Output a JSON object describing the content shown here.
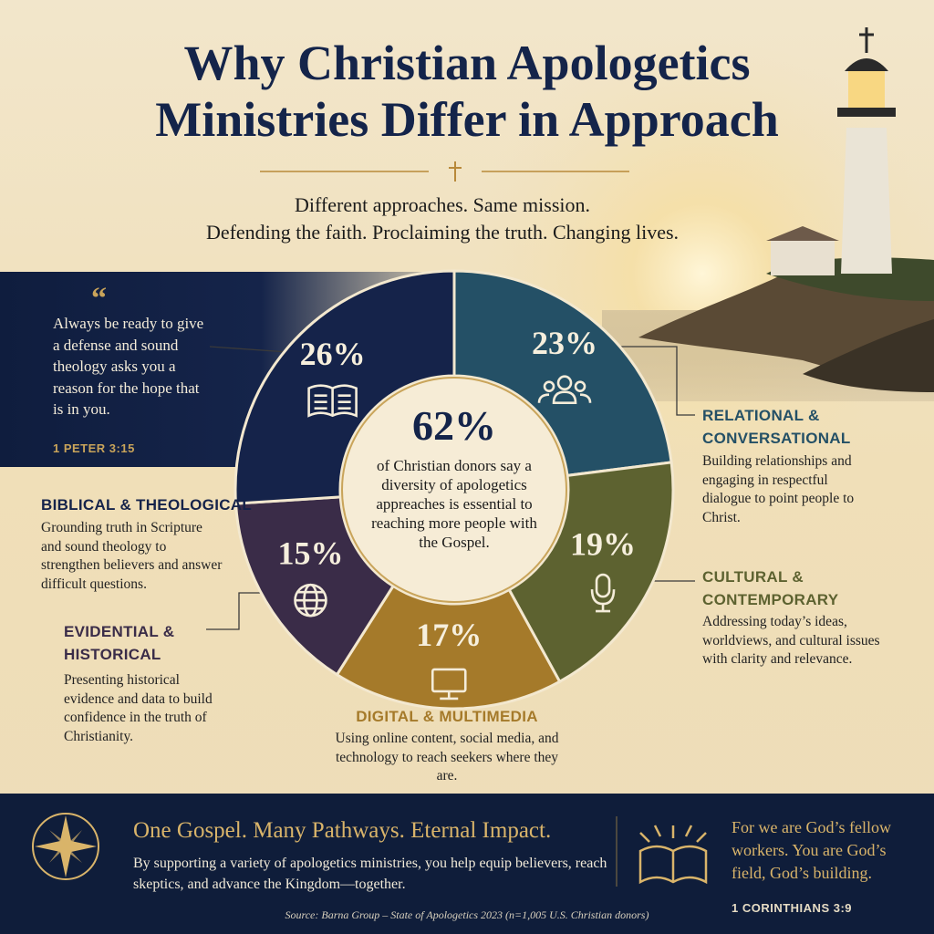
{
  "title": [
    "Why Christian Apologetics",
    "Ministries Differ in Approach"
  ],
  "subtitle": [
    "Different approaches. Same mission.",
    "Defending the faith. Proclaiming the truth. Changing lives."
  ],
  "quote": {
    "text": "Always be ready to give a defense and sound theology asks you a reason for the hope that is in you.",
    "reference": "1 PETER 3:15"
  },
  "chart_data": {
    "type": "pie",
    "categories": [
      "RELATIONAL & CONVERSATIONAL",
      "CULTURAL & CONTEMPORARY",
      "DIGITAL & MULTIMEDIA",
      "EVIDENTIAL & HISTORICAL",
      "BIBLICAL & THEOLOGICAL"
    ],
    "values": [
      23,
      19,
      17,
      15,
      26
    ],
    "value_labels": [
      "23%",
      "19%",
      "17%",
      "15%",
      "26%"
    ],
    "colors": [
      "#245066",
      "#5d6230",
      "#a57a2a",
      "#3a2c48",
      "#15234a"
    ],
    "descriptions": [
      "Building relationships and engaging in respectful dialogue to point people to Christ.",
      "Addressing today’s ideas, worldviews, and cultural issues with clarity and relevance.",
      "Using online content, social media, and technology to reach seekers where they are.",
      "Presenting historical evidence and data to build confidence in the truth of Christianity.",
      "Grounding truth in Scripture and sound theology to strengthen believers and answer difficult questions."
    ],
    "center_stat": {
      "value": 62,
      "label": "62%"
    },
    "center_text": "of Christian donors say a diversity of apologetics appreaches is essential to reaching more people with the Gospel."
  },
  "footer": {
    "heading": "One Gospel. Many Pathways. Eternal Impact.",
    "body": "By supporting a variety of apologetics ministries, you help equip believers, reach skeptics, and advance the Kingdom—together.",
    "verse": "For we are God’s fellow workers. You are God’s field, God’s building.",
    "verse_reference": "1 CORINTHIANS 3:9",
    "source": "Source: Barna Group – State of Apologetics 2023 (n=1,005 U.S. Christian donors)"
  }
}
